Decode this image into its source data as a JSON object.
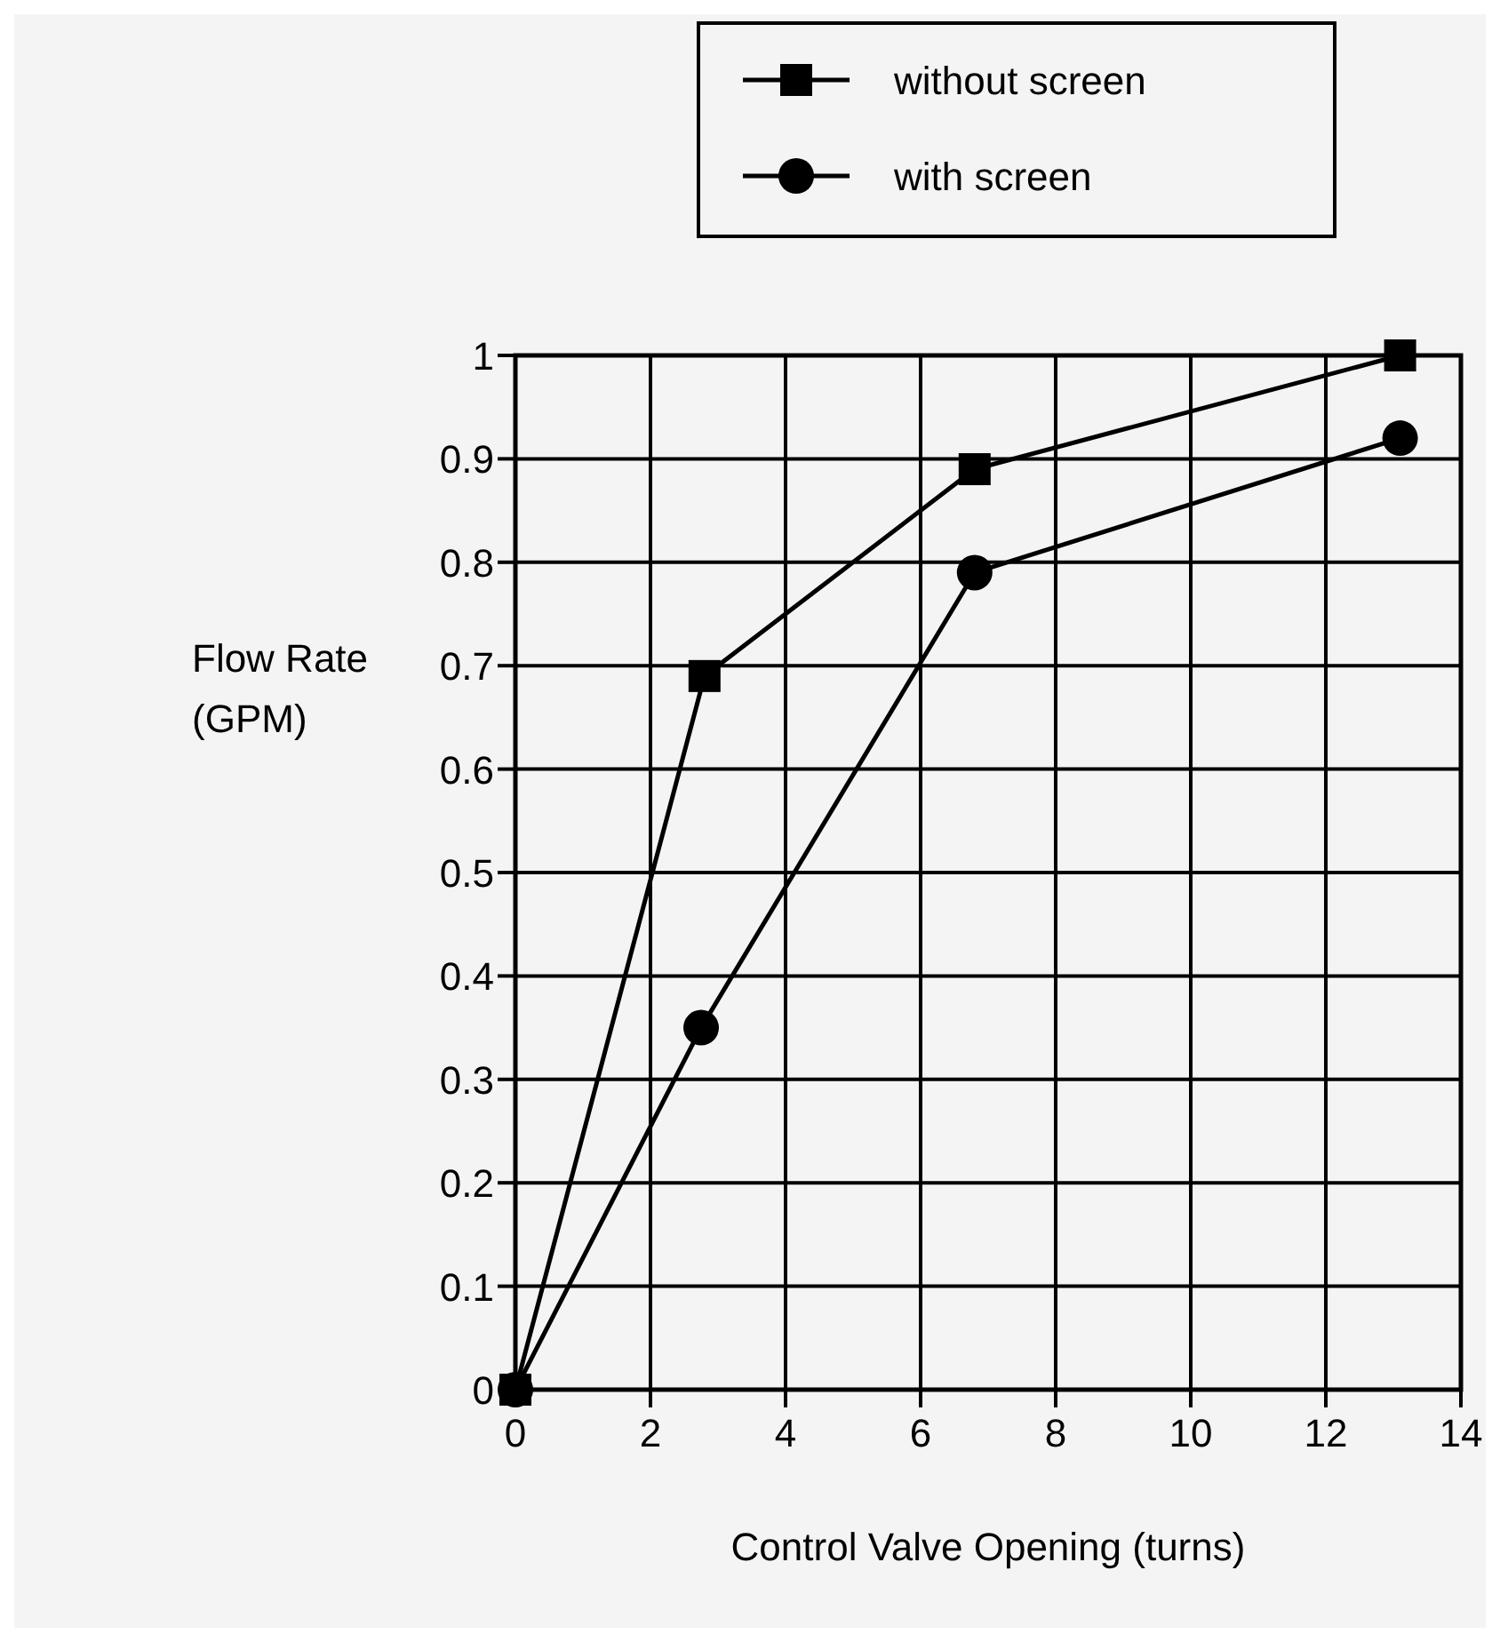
{
  "chart_data": {
    "type": "line",
    "xlabel": "Control Valve Opening (turns)",
    "ylabel": "Flow Rate\n(GPM)",
    "xlim": [
      0,
      14
    ],
    "xticks": [
      0,
      2,
      4,
      6,
      8,
      10,
      12,
      14
    ],
    "ylim": [
      0,
      1
    ],
    "yticks": [
      0,
      0.1,
      0.2,
      0.3,
      0.4,
      0.5,
      0.6,
      0.7,
      0.8,
      0.9,
      1
    ],
    "grid": true,
    "legend": "top",
    "line_style": "solid",
    "series": [
      {
        "name": "without screen",
        "color": "#000000",
        "marker": "square",
        "x": [
          0,
          2.8,
          6.8,
          13.1
        ],
        "values": [
          0,
          0.69,
          0.89,
          1.0
        ]
      },
      {
        "name": "with screen",
        "color": "#000000",
        "marker": "circle",
        "x": [
          0,
          2.75,
          6.8,
          13.1
        ],
        "values": [
          0,
          0.35,
          0.79,
          0.92
        ]
      }
    ]
  }
}
